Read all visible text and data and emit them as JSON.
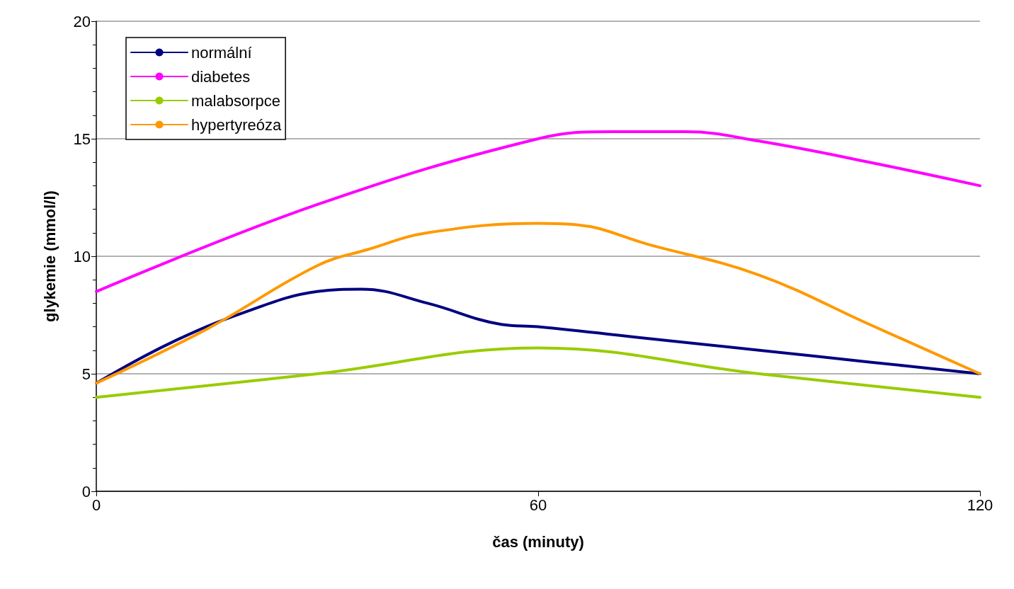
{
  "chart_data": {
    "type": "line",
    "xlabel": "čas (minuty)",
    "ylabel": "glykemie (mmol/l)",
    "xlim": [
      0,
      120
    ],
    "xticks": [
      0,
      60,
      120
    ],
    "ylim": [
      0,
      20
    ],
    "yticks": [
      0,
      5,
      10,
      15,
      20
    ],
    "grid": "y",
    "legend": "top left",
    "marker": "none",
    "line_style": "solid",
    "series": [
      {
        "name": "normální",
        "color": "#000080",
        "x": [
          0,
          10,
          20,
          30,
          36,
          45,
          55,
          60,
          75,
          90,
          105,
          120
        ],
        "values": [
          4.6,
          6.3,
          7.6,
          8.5,
          8.6,
          8.0,
          7.1,
          7.0,
          6.5,
          6.0,
          5.5,
          5.0
        ]
      },
      {
        "name": "diabetes",
        "color": "#ff00ff",
        "x": [
          0,
          30,
          60,
          70,
          80,
          90,
          105,
          120
        ],
        "values": [
          8.5,
          12.2,
          15.0,
          15.3,
          15.3,
          14.9,
          14.0,
          13.0
        ]
      },
      {
        "name": "malabsorpce",
        "color": "#99cc00",
        "x": [
          0,
          30,
          60,
          90,
          120
        ],
        "values": [
          4.0,
          5.0,
          6.1,
          5.0,
          4.0
        ]
      },
      {
        "name": "hypertyreóza",
        "color": "#ff9900",
        "x": [
          0,
          15,
          30,
          37,
          45,
          60,
          65,
          75,
          90,
          105,
          120
        ],
        "values": [
          4.6,
          6.9,
          9.6,
          10.3,
          11.0,
          11.4,
          11.35,
          10.5,
          9.2,
          7.1,
          5.0
        ]
      }
    ]
  }
}
